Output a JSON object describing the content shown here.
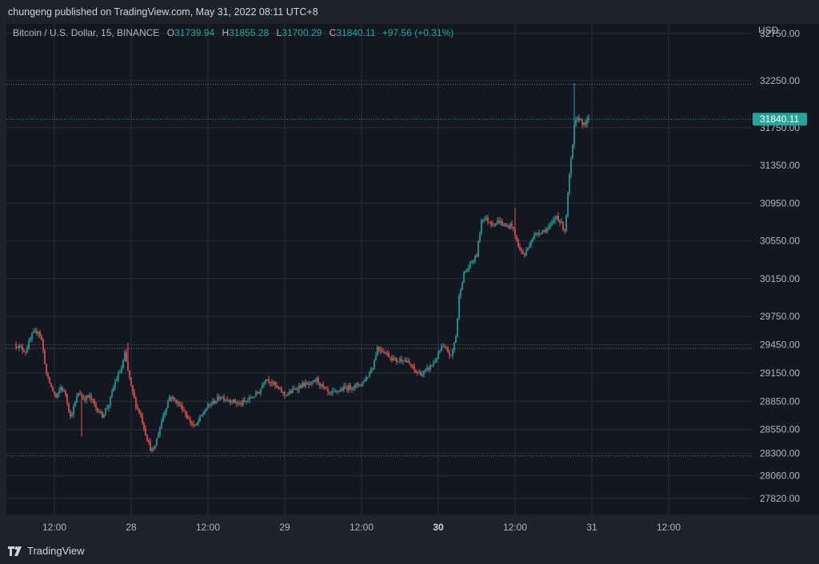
{
  "header": {
    "publish_text": "chungeng published on TradingView.com, May 31, 2022 08:11 UTC+8"
  },
  "legend": {
    "symbol": "Bitcoin / U.S. Dollar, 15, BINANCE",
    "open_label": "O",
    "open": "31739.94",
    "high_label": "H",
    "high": "31855.28",
    "low_label": "L",
    "low": "31700.29",
    "close_label": "C",
    "close": "31840.11",
    "change": "+97.56 (+0.31%)"
  },
  "footer": {
    "brand": "TradingView",
    "logo_icon": "tradingview-logo-icon"
  },
  "colors": {
    "up": "#26a69a",
    "down": "#ef5350",
    "background": "#131722",
    "frame": "#1e222d",
    "grid": "#2a2e39",
    "text": "#b2b5be"
  },
  "chart_data": {
    "type": "candlestick",
    "symbol": "BTCUSD",
    "interval": "15",
    "currency_label": "USD",
    "last_price": 31840.11,
    "y_ticks": [
      32750,
      32250,
      31750,
      31350,
      30950,
      30550,
      30150,
      29750,
      29450,
      29150,
      28850,
      28550,
      28300,
      28060,
      27820
    ],
    "y_tick_labels": [
      "32750.00",
      "32250.00",
      "31750.00",
      "31350.00",
      "30950.00",
      "30550.00",
      "30150.00",
      "29750.00",
      "29450.00",
      "29150.00",
      "28850.00",
      "28550.00",
      "28300.00",
      "28060.00",
      "27820.00"
    ],
    "x_ticks": [
      {
        "label": "12:00",
        "t": 12,
        "bold": false
      },
      {
        "label": "28",
        "t": 24,
        "bold": false
      },
      {
        "label": "12:00",
        "t": 36,
        "bold": false
      },
      {
        "label": "29",
        "t": 48,
        "bold": false
      },
      {
        "label": "12:00",
        "t": 60,
        "bold": false
      },
      {
        "label": "30",
        "t": 72,
        "bold": true
      },
      {
        "label": "12:00",
        "t": 84,
        "bold": false
      },
      {
        "label": "31",
        "t": 96,
        "bold": false
      },
      {
        "label": "12:00",
        "t": 108,
        "bold": false
      }
    ],
    "t_unit": "hours since May 27 00:00",
    "x_range": [
      4.5,
      121
    ],
    "y_range": [
      27650,
      32850
    ],
    "dotted_levels": [
      32210,
      29410,
      28270
    ],
    "price_anchors": [
      [
        6.0,
        29450
      ],
      [
        7.5,
        29380
      ],
      [
        8.5,
        29550
      ],
      [
        9.5,
        29600
      ],
      [
        10.0,
        29500
      ],
      [
        10.8,
        29120
      ],
      [
        11.5,
        29000
      ],
      [
        12.3,
        28880
      ],
      [
        13.0,
        29000
      ],
      [
        13.8,
        28920
      ],
      [
        14.5,
        28680
      ],
      [
        15.0,
        28780
      ],
      [
        15.8,
        28950
      ],
      [
        16.5,
        28880
      ],
      [
        17.5,
        28900
      ],
      [
        18.5,
        28780
      ],
      [
        19.5,
        28700
      ],
      [
        20.5,
        28820
      ],
      [
        21.5,
        29060
      ],
      [
        22.5,
        29200
      ],
      [
        23.0,
        29350
      ],
      [
        24.0,
        29000
      ],
      [
        24.8,
        28800
      ],
      [
        25.5,
        28700
      ],
      [
        26.3,
        28500
      ],
      [
        27.0,
        28350
      ],
      [
        27.5,
        28320
      ],
      [
        28.0,
        28450
      ],
      [
        29.0,
        28700
      ],
      [
        30.0,
        28900
      ],
      [
        31.0,
        28850
      ],
      [
        32.0,
        28780
      ],
      [
        33.0,
        28650
      ],
      [
        34.0,
        28580
      ],
      [
        35.0,
        28700
      ],
      [
        36.0,
        28800
      ],
      [
        37.0,
        28850
      ],
      [
        38.0,
        28900
      ],
      [
        39.0,
        28870
      ],
      [
        40.0,
        28850
      ],
      [
        41.0,
        28820
      ],
      [
        42.0,
        28850
      ],
      [
        43.0,
        28900
      ],
      [
        44.0,
        28950
      ],
      [
        45.0,
        29100
      ],
      [
        46.0,
        29050
      ],
      [
        47.0,
        28980
      ],
      [
        48.0,
        28920
      ],
      [
        49.0,
        28950
      ],
      [
        50.0,
        29000
      ],
      [
        51.0,
        29030
      ],
      [
        52.0,
        29020
      ],
      [
        53.0,
        29080
      ],
      [
        54.0,
        28990
      ],
      [
        55.0,
        28920
      ],
      [
        56.0,
        28950
      ],
      [
        57.0,
        28980
      ],
      [
        58.0,
        29000
      ],
      [
        59.0,
        29010
      ],
      [
        60.0,
        29040
      ],
      [
        61.0,
        29120
      ],
      [
        61.8,
        29230
      ],
      [
        62.5,
        29420
      ],
      [
        63.5,
        29380
      ],
      [
        64.5,
        29320
      ],
      [
        65.5,
        29280
      ],
      [
        66.5,
        29300
      ],
      [
        67.5,
        29240
      ],
      [
        68.5,
        29160
      ],
      [
        69.5,
        29140
      ],
      [
        70.5,
        29200
      ],
      [
        71.5,
        29280
      ],
      [
        72.5,
        29420
      ],
      [
        73.3,
        29400
      ],
      [
        74.0,
        29320
      ],
      [
        74.8,
        29560
      ],
      [
        75.3,
        30000
      ],
      [
        76.0,
        30200
      ],
      [
        77.0,
        30300
      ],
      [
        78.0,
        30400
      ],
      [
        78.8,
        30800
      ],
      [
        79.5,
        30780
      ],
      [
        80.5,
        30730
      ],
      [
        81.5,
        30760
      ],
      [
        82.5,
        30700
      ],
      [
        83.5,
        30720
      ],
      [
        84.0,
        30600
      ],
      [
        84.8,
        30450
      ],
      [
        85.5,
        30400
      ],
      [
        86.5,
        30560
      ],
      [
        87.5,
        30640
      ],
      [
        88.5,
        30660
      ],
      [
        89.5,
        30700
      ],
      [
        90.5,
        30820
      ],
      [
        91.3,
        30720
      ],
      [
        91.8,
        30660
      ],
      [
        92.5,
        31250
      ],
      [
        93.0,
        31550
      ],
      [
        93.3,
        31800
      ],
      [
        94.0,
        31850
      ],
      [
        94.8,
        31780
      ],
      [
        95.5,
        31840
      ]
    ],
    "notable_wicks": [
      {
        "t": 16.3,
        "low": 28480
      },
      {
        "t": 84.0,
        "high": 30900
      },
      {
        "t": 93.2,
        "high": 32220
      },
      {
        "t": 23.4,
        "high": 29470
      }
    ]
  }
}
